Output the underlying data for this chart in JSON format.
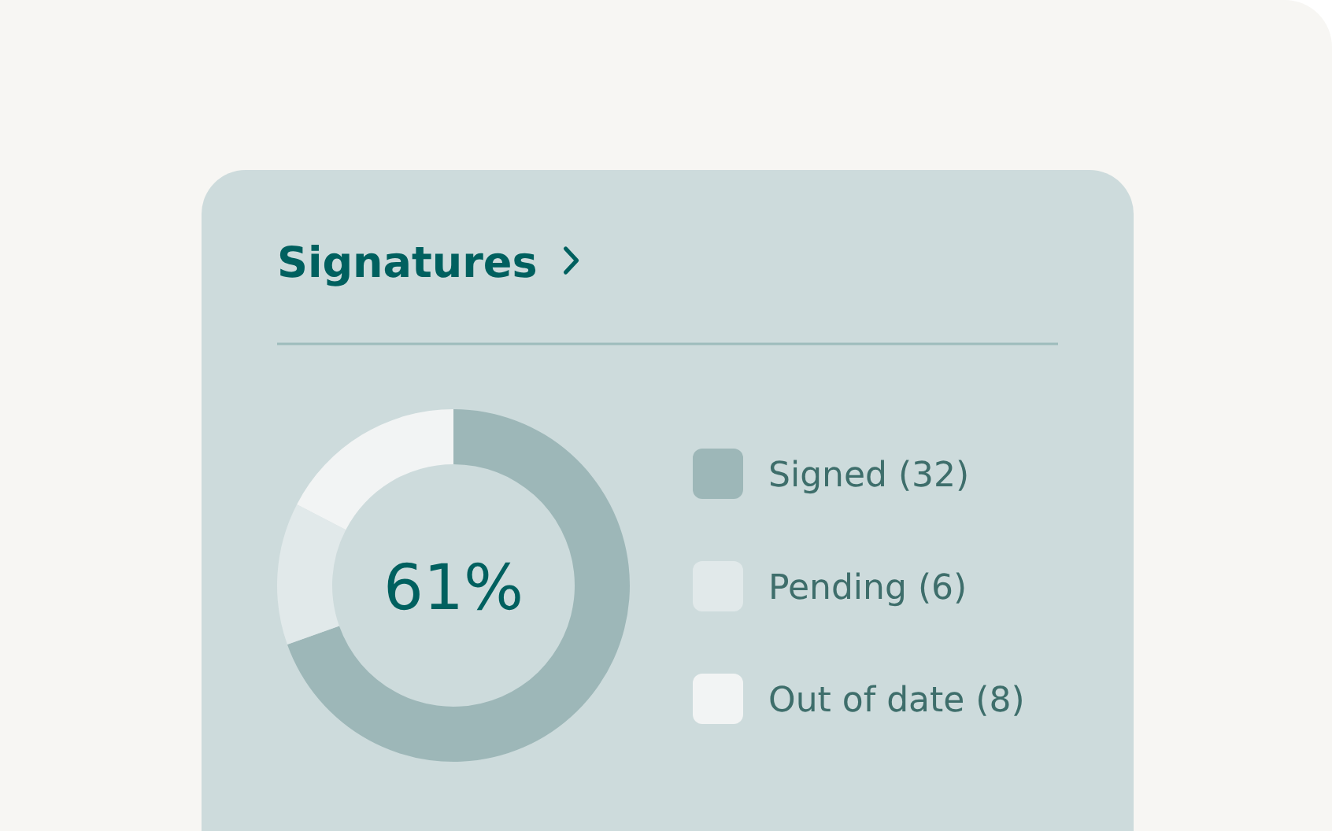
{
  "chart_data": {
    "type": "donut",
    "title": "Signatures",
    "categories": [
      "Signed (32)",
      "Pending (6)",
      "Out of date (8)"
    ],
    "values": [
      32,
      6,
      8
    ],
    "colors": [
      "#9db7b8",
      "#e1e9ea",
      "#f2f4f4"
    ],
    "legend": "right",
    "annotations": [
      "61%"
    ]
  }
}
